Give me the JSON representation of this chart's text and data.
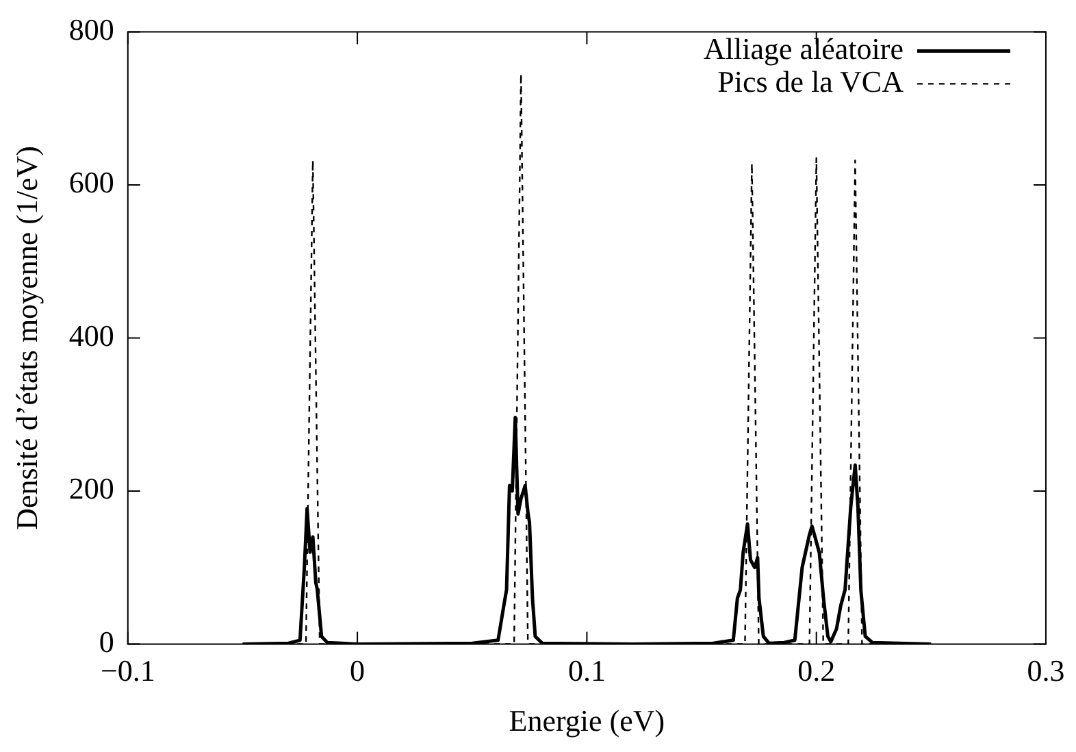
{
  "chart_data": {
    "type": "line",
    "xlabel": "Energie (eV)",
    "ylabel": "Densité d’états moyenne (1/eV)",
    "xlim": [
      -0.1,
      0.3
    ],
    "xticks": [
      -0.1,
      0,
      0.1,
      0.2,
      0.3
    ],
    "ylim": [
      0,
      800
    ],
    "yticks": [
      0,
      200,
      400,
      600,
      800
    ],
    "grid": false,
    "legend": "top right",
    "marker": "none",
    "series": [
      {
        "name": "Alliage aléatoire",
        "color": "#000000",
        "line_style": "solid",
        "x": [
          -0.05,
          -0.03,
          -0.025,
          -0.0231,
          -0.0219,
          -0.0206,
          -0.0194,
          -0.0181,
          -0.0175,
          -0.0156,
          -0.0131,
          0.0,
          0.05,
          0.0613,
          0.0638,
          0.065,
          0.0663,
          0.0675,
          0.0688,
          0.07,
          0.0713,
          0.0731,
          0.0744,
          0.075,
          0.0763,
          0.0775,
          0.0806,
          0.12,
          0.155,
          0.1638,
          0.1656,
          0.1669,
          0.1681,
          0.17,
          0.1713,
          0.1731,
          0.1744,
          0.175,
          0.1769,
          0.1794,
          0.186,
          0.1906,
          0.1938,
          0.1969,
          0.1981,
          0.1994,
          0.2013,
          0.2025,
          0.2031,
          0.205,
          0.2063,
          0.2088,
          0.2106,
          0.2125,
          0.215,
          0.2169,
          0.2181,
          0.2194,
          0.2213,
          0.2244,
          0.25
        ],
        "values": [
          0,
          1,
          5,
          100,
          177,
          120,
          140,
          80,
          72,
          10,
          2,
          0,
          1,
          5,
          50,
          71,
          207,
          200,
          296,
          170,
          190,
          207,
          170,
          159,
          60,
          10,
          1,
          0,
          1,
          5,
          60,
          71,
          120,
          157,
          110,
          100,
          113,
          60,
          10,
          1,
          2,
          5,
          100,
          142,
          154,
          140,
          119,
          80,
          60,
          10,
          3,
          20,
          50,
          71,
          180,
          234,
          180,
          70,
          10,
          2,
          0
        ]
      },
      {
        "name": "Pics de la VCA",
        "color": "#000000",
        "line_style": "dashed",
        "x": [
          -0.05,
          -0.0224,
          -0.0194,
          -0.0164,
          0.0683,
          0.0713,
          0.0743,
          0.1689,
          0.1719,
          0.1749,
          0.197,
          0.2,
          0.203,
          0.2139,
          0.2169,
          0.2199,
          0.25
        ],
        "values": [
          0,
          0,
          632,
          0,
          0,
          745,
          0,
          0,
          628,
          0,
          0,
          635,
          0,
          0,
          632,
          0,
          0
        ]
      }
    ]
  }
}
